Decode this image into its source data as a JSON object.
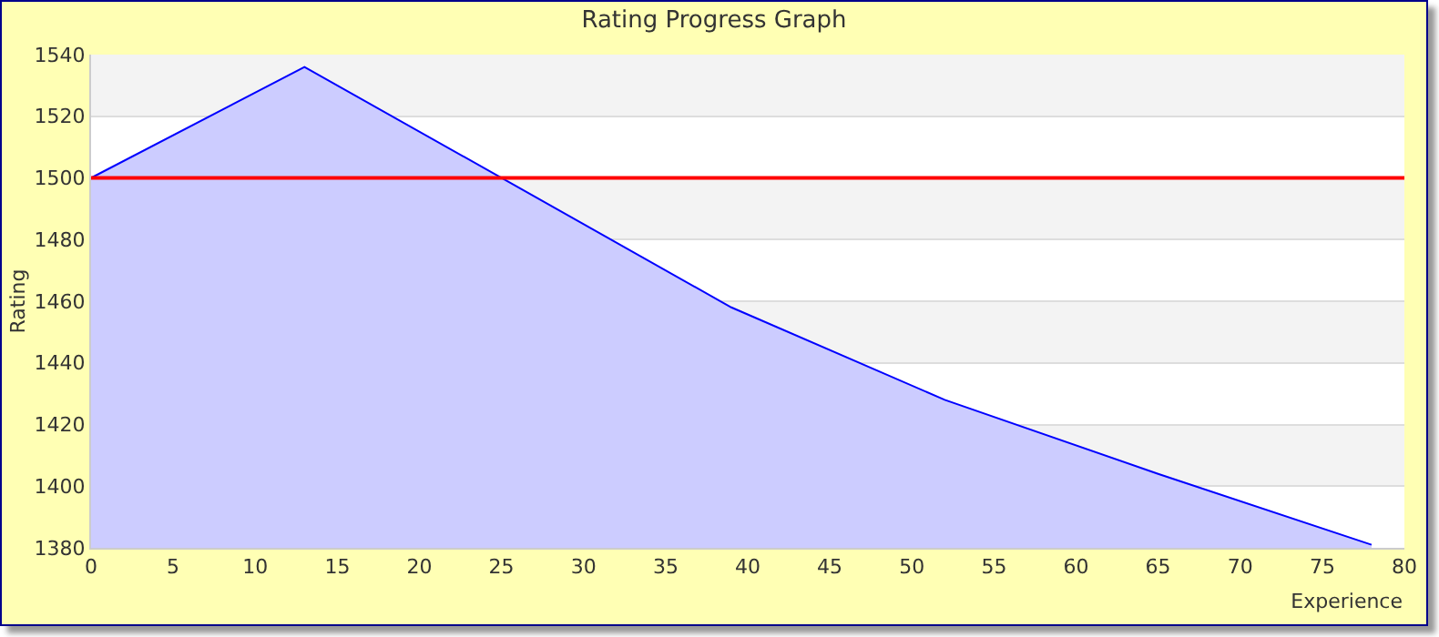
{
  "chart_data": {
    "type": "area",
    "title": "Rating Progress Graph",
    "xlabel": "Experience",
    "ylabel": "Rating",
    "x": [
      0,
      13,
      26,
      39,
      52,
      65,
      78
    ],
    "series": [
      {
        "color": "#0000ff",
        "values": [
          1500,
          1536,
          1497,
          1458,
          1428,
          1404,
          1381
        ]
      }
    ],
    "xlim": [
      0,
      80
    ],
    "xticks": [
      0,
      5,
      10,
      15,
      20,
      25,
      30,
      35,
      40,
      45,
      50,
      55,
      60,
      65,
      70,
      75,
      80
    ],
    "ylim": [
      1380,
      1540
    ],
    "yticks": [
      1380,
      1400,
      1420,
      1440,
      1460,
      1480,
      1500,
      1520,
      1540
    ],
    "grid": "y",
    "marker": "none",
    "line_style": "solid",
    "ref_lines": [
      {
        "axis": "y",
        "value": 1500,
        "color": "#ff0000"
      }
    ]
  }
}
